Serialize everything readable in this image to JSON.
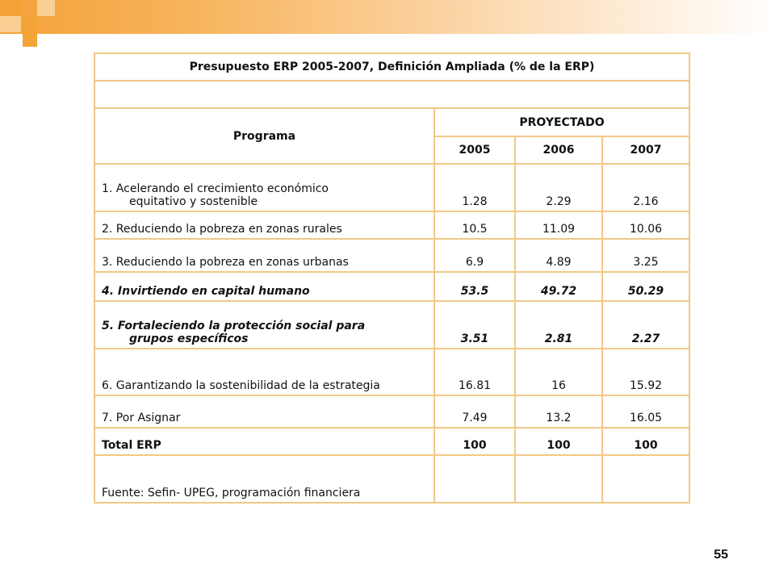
{
  "table": {
    "title": "Presupuesto ERP 2005-2007, Definición Ampliada (% de la ERP)",
    "program_header": "Programa",
    "group_header": "PROYECTADO",
    "years": [
      "2005",
      "2006",
      "2007"
    ],
    "rows": [
      {
        "label1": "1. Acelerando el crecimiento económico",
        "label2": "equitativo y sostenible",
        "values": [
          "1.28",
          "2.29",
          "2.16"
        ]
      },
      {
        "label1": "2. Reduciendo la pobreza en zonas rurales",
        "values": [
          "10.5",
          "11.09",
          "10.06"
        ]
      },
      {
        "label1": "3. Reduciendo la pobreza en zonas urbanas",
        "values": [
          "6.9",
          "4.89",
          "3.25"
        ]
      },
      {
        "label1": "4. Invirtiendo en capital humano",
        "values": [
          "53.5",
          "49.72",
          "50.29"
        ]
      },
      {
        "label1": "5. Fortaleciendo la protección social para",
        "label2": "grupos específicos",
        "values": [
          "3.51",
          "2.81",
          "2.27"
        ]
      },
      {
        "label1": "6. Garantizando la sostenibilidad de la estrategia",
        "values": [
          "16.81",
          "16",
          "15.92"
        ]
      },
      {
        "label1": "7. Por Asignar",
        "values": [
          "7.49",
          "13.2",
          "16.05"
        ]
      }
    ],
    "total": {
      "label": "Total ERP",
      "values": [
        "100",
        "100",
        "100"
      ]
    },
    "source": "Fuente: Sefin- UPEG, programación financiera"
  },
  "page_number": "55"
}
